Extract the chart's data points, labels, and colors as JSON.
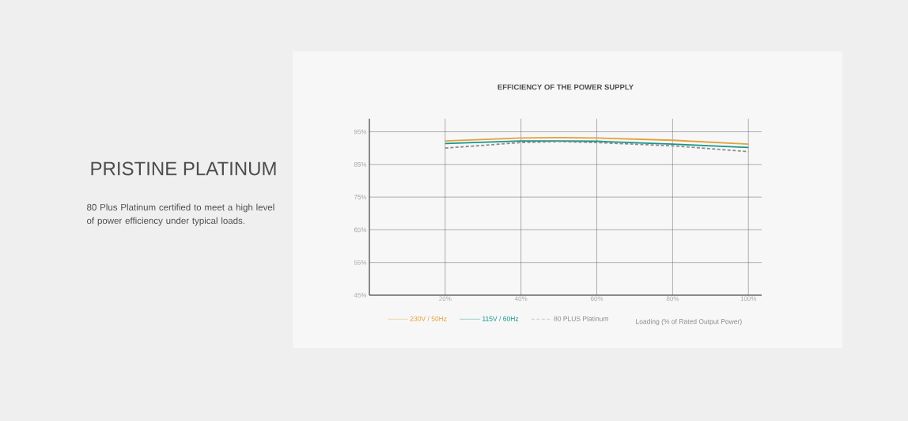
{
  "chart_data": {
    "type": "line",
    "title": "EFFICIENCY OF THE POWER SUPPLY",
    "xlabel": "Loading (% of Rated Output Power)",
    "annotations": [
      "PRISTINE PLATINUM",
      "80 Plus Platinum certified to meet a high level of power efficiency under typical loads."
    ],
    "x": [
      20,
      40,
      50,
      60,
      80,
      100
    ],
    "series": [
      {
        "name": "230V / 50Hz",
        "color": "#e5a03a",
        "values": [
          92.2,
          93.1,
          93.2,
          93.1,
          92.4,
          91.2
        ]
      },
      {
        "name": "115V / 60Hz",
        "color": "#17968c",
        "values": [
          91.4,
          92.2,
          92.2,
          92.1,
          91.2,
          90.2
        ]
      },
      {
        "name": "80 PLUS Platinum",
        "color": "#8c8c8c",
        "line_style": "dashed",
        "values": [
          90.0,
          91.7,
          92.0,
          91.7,
          90.7,
          88.9
        ]
      }
    ],
    "xlim": [
      0,
      103.5
    ],
    "ylim": [
      45,
      99
    ],
    "xticks": [
      {
        "value": 20,
        "label": "20%"
      },
      {
        "value": 40,
        "label": "40%"
      },
      {
        "value": 60,
        "label": "60%"
      },
      {
        "value": 80,
        "label": "80%"
      },
      {
        "value": 100,
        "label": "100%"
      }
    ],
    "yticks": [
      {
        "value": 45,
        "label": "45%"
      },
      {
        "value": 55,
        "label": "55%"
      },
      {
        "value": 65,
        "label": "65%"
      },
      {
        "value": 75,
        "label": "75%"
      },
      {
        "value": 85,
        "label": "85%"
      },
      {
        "value": 95,
        "label": "95%"
      }
    ],
    "grid": true,
    "legend": "bottom"
  }
}
